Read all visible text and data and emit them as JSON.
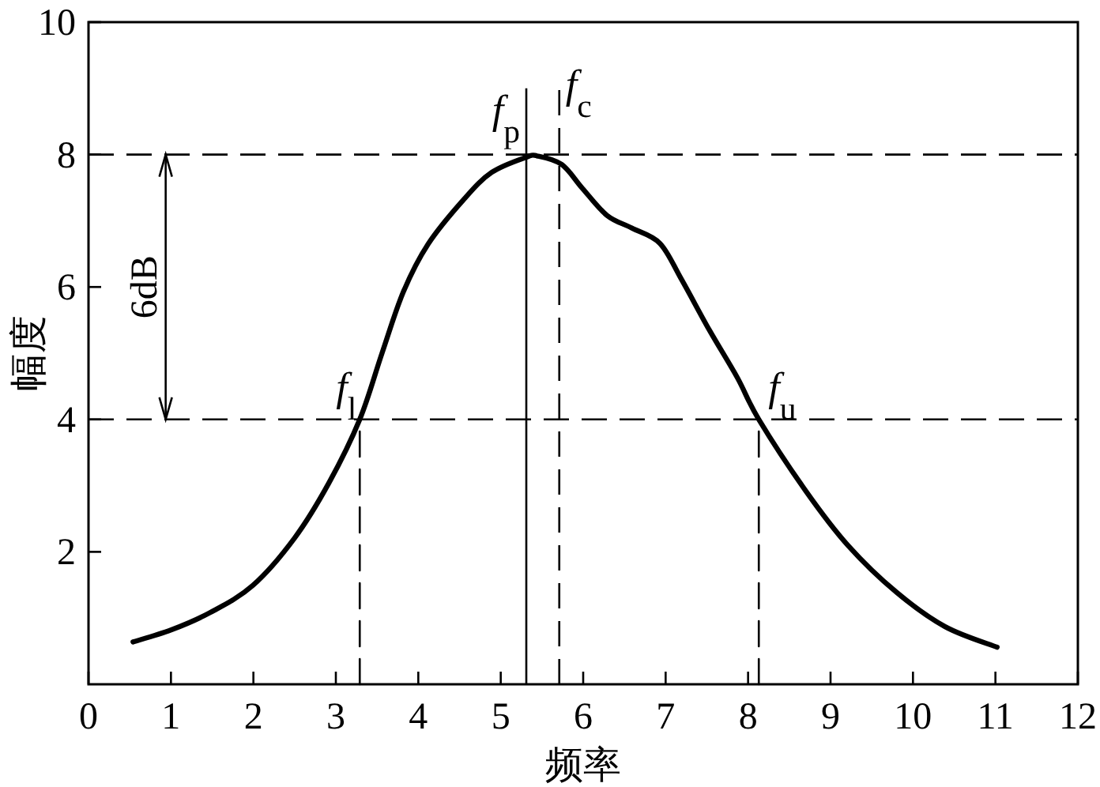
{
  "chart_data": {
    "type": "line",
    "xlabel": "频率",
    "ylabel": "幅度",
    "xlim": [
      0,
      12
    ],
    "ylim": [
      0,
      10
    ],
    "xticks": [
      0,
      1,
      2,
      3,
      4,
      5,
      6,
      7,
      8,
      9,
      10,
      11,
      12
    ],
    "yticks": [
      2,
      4,
      6,
      8,
      10
    ],
    "grid": false,
    "series": [
      {
        "color": "#000000",
        "x": [
          0.54,
          1.0,
          1.47,
          1.99,
          2.5,
          2.92,
          3.29,
          3.56,
          3.82,
          4.12,
          4.55,
          4.89,
          5.31,
          5.44,
          5.74,
          5.99,
          6.29,
          6.59,
          6.93,
          7.19,
          7.53,
          7.87,
          8.13,
          8.7,
          9.21,
          9.8,
          10.39,
          11.02
        ],
        "values": [
          0.64,
          0.82,
          1.08,
          1.49,
          2.21,
          3.05,
          4.0,
          5.0,
          5.93,
          6.65,
          7.32,
          7.73,
          7.96,
          7.98,
          7.85,
          7.49,
          7.08,
          6.89,
          6.66,
          6.12,
          5.35,
          4.63,
          4.0,
          2.92,
          2.1,
          1.39,
          0.87,
          0.56
        ]
      },
      {
        "color": "#000000",
        "x": [
          3.29,
          3.29
        ],
        "values": [
          0,
          4
        ],
        "line_style": "dashed"
      },
      {
        "color": "#000000",
        "x": [
          8.13,
          8.13
        ],
        "values": [
          0,
          4
        ],
        "line_style": "dashed"
      }
    ],
    "ref_lines": [
      {
        "axis": "y",
        "value": 8,
        "line_style": "dashed"
      },
      {
        "axis": "y",
        "value": 4,
        "line_style": "dashed"
      },
      {
        "axis": "x",
        "value": 5.31,
        "label": "f$_{p}$",
        "line_style": "solid"
      },
      {
        "axis": "x",
        "value": 5.71,
        "label": "f$_{c}$",
        "line_style": "dashed"
      }
    ],
    "annotations": [
      {
        "text": "f$_{l}$",
        "x": 3.29,
        "y": 4
      },
      {
        "text": "f$_{u}$",
        "x": 8.13,
        "y": 4
      },
      "6dB"
    ]
  }
}
